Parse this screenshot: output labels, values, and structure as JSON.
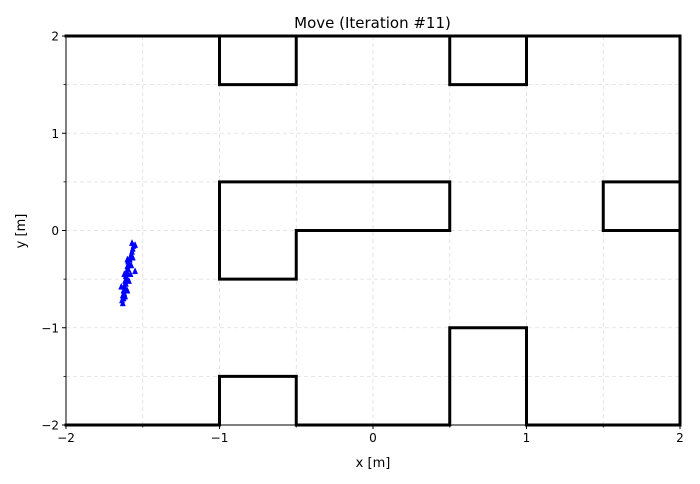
{
  "chart_data": {
    "type": "scatter",
    "title": "Move (Iteration #11)",
    "xlabel": "x [m]",
    "ylabel": "y [m]",
    "xlim": [
      -2,
      2
    ],
    "ylim": [
      -2,
      2
    ],
    "x_ticks": [
      -2,
      -1,
      0,
      1,
      2
    ],
    "y_ticks": [
      -2,
      -1,
      0,
      1,
      2
    ],
    "x_tick_labels": [
      "−2",
      "−1",
      "0",
      "1",
      "2"
    ],
    "y_tick_labels": [
      "−2",
      "−1",
      "0",
      "1",
      "2"
    ],
    "x_minor_ticks": [
      -1.5,
      -0.5,
      0.5,
      1.5
    ],
    "y_minor_ticks": [
      -1.5,
      -0.5,
      0.5,
      1.5
    ],
    "grid": true,
    "grid_style": "dashed",
    "wall_color": "#000000",
    "particle_color": "#0000ff",
    "walls": [
      [
        [
          -1,
          2
        ],
        [
          -1,
          1.5
        ],
        [
          -0.5,
          1.5
        ],
        [
          -0.5,
          2
        ]
      ],
      [
        [
          0.5,
          2
        ],
        [
          0.5,
          1.5
        ],
        [
          1,
          1.5
        ],
        [
          1,
          2
        ]
      ],
      [
        [
          -2,
          2
        ],
        [
          2,
          2
        ]
      ],
      [
        [
          2,
          2
        ],
        [
          2,
          -2
        ]
      ],
      [
        [
          -1,
          0.5
        ],
        [
          0.5,
          0.5
        ],
        [
          0.5,
          0
        ],
        [
          -0.5,
          0
        ],
        [
          -0.5,
          -0.5
        ],
        [
          -1,
          -0.5
        ],
        [
          -1,
          0.5
        ]
      ],
      [
        [
          2,
          0.5
        ],
        [
          1.5,
          0.5
        ],
        [
          1.5,
          0
        ],
        [
          2,
          0
        ]
      ],
      [
        [
          -2,
          -2
        ],
        [
          -1,
          -2
        ],
        [
          -1,
          -1.5
        ],
        [
          -0.5,
          -1.5
        ],
        [
          -0.5,
          -2
        ],
        [
          0.5,
          -2
        ],
        [
          0.5,
          -1
        ],
        [
          1,
          -1
        ],
        [
          1,
          -2
        ],
        [
          2,
          -2
        ]
      ]
    ],
    "particles": [
      {
        "x": -1.63,
        "y": -0.75
      },
      {
        "x": -1.635,
        "y": -0.72
      },
      {
        "x": -1.625,
        "y": -0.7
      },
      {
        "x": -1.63,
        "y": -0.67
      },
      {
        "x": -1.62,
        "y": -0.65
      },
      {
        "x": -1.625,
        "y": -0.62
      },
      {
        "x": -1.615,
        "y": -0.6
      },
      {
        "x": -1.62,
        "y": -0.57
      },
      {
        "x": -1.61,
        "y": -0.55
      },
      {
        "x": -1.615,
        "y": -0.52
      },
      {
        "x": -1.605,
        "y": -0.5
      },
      {
        "x": -1.61,
        "y": -0.47
      },
      {
        "x": -1.6,
        "y": -0.45
      },
      {
        "x": -1.605,
        "y": -0.42
      },
      {
        "x": -1.595,
        "y": -0.4
      },
      {
        "x": -1.6,
        "y": -0.37
      },
      {
        "x": -1.59,
        "y": -0.35
      },
      {
        "x": -1.595,
        "y": -0.32
      },
      {
        "x": -1.585,
        "y": -0.3
      },
      {
        "x": -1.58,
        "y": -0.27
      },
      {
        "x": -1.575,
        "y": -0.25
      },
      {
        "x": -1.57,
        "y": -0.22
      },
      {
        "x": -1.565,
        "y": -0.19
      },
      {
        "x": -1.56,
        "y": -0.16
      },
      {
        "x": -1.57,
        "y": -0.13
      },
      {
        "x": -1.55,
        "y": -0.15
      },
      {
        "x": -1.58,
        "y": -0.45
      },
      {
        "x": -1.6,
        "y": -0.62
      },
      {
        "x": -1.615,
        "y": -0.68
      },
      {
        "x": -1.59,
        "y": -0.52
      },
      {
        "x": -1.575,
        "y": -0.36
      },
      {
        "x": -1.55,
        "y": -0.42
      },
      {
        "x": -1.64,
        "y": -0.58
      },
      {
        "x": -1.6,
        "y": -0.3
      },
      {
        "x": -1.565,
        "y": -0.28
      },
      {
        "x": -1.62,
        "y": -0.45
      }
    ]
  }
}
